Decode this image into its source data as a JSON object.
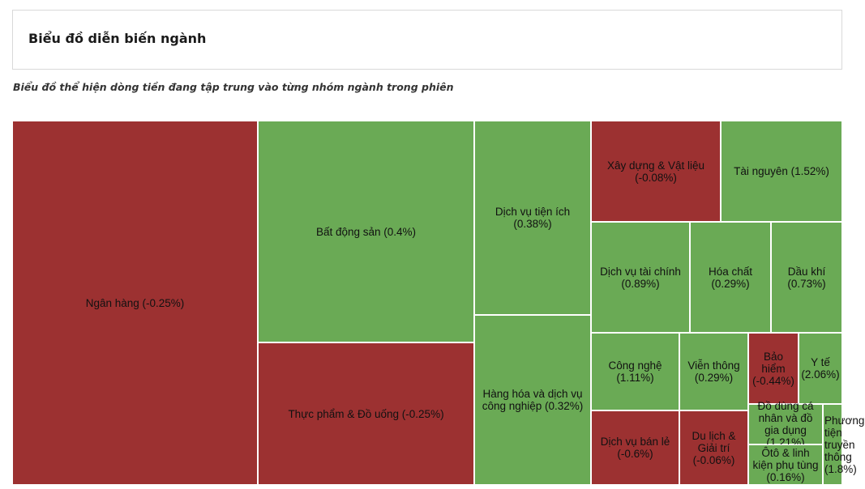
{
  "header": {
    "title": "Biểu đồ diễn biến ngành"
  },
  "subtitle": "Biểu đồ thể hiện dòng tiền đang tập trung vào từng nhóm ngành trong phiên",
  "colors": {
    "up": "#6aaa55",
    "down": "#9c3131"
  },
  "chart_data": {
    "type": "treemap",
    "title": "Biểu đồ diễn biến ngành",
    "subtitle": "Biểu đồ thể hiện dòng tiền đang tập trung vào từng nhóm ngành trong phiên",
    "items": [
      {
        "name": "Ngân hàng",
        "change": -0.25,
        "label": "Ngân hàng (-0.25%)"
      },
      {
        "name": "Bất động sản",
        "change": 0.4,
        "label": "Bất động sản (0.4%)"
      },
      {
        "name": "Thực phẩm & Đồ uống",
        "change": -0.25,
        "label": "Thực phẩm & Đồ uống (-0.25%)"
      },
      {
        "name": "Dịch vụ tiện ích",
        "change": 0.38,
        "label": "Dịch vụ tiện ích (0.38%)"
      },
      {
        "name": "Hàng hóa và dịch vụ công nghiệp",
        "change": 0.32,
        "label": "Hàng hóa và dịch vụ công nghiệp (0.32%)"
      },
      {
        "name": "Xây dựng & Vật liệu",
        "change": -0.08,
        "label": "Xây dựng & Vật liệu (-0.08%)"
      },
      {
        "name": "Tài nguyên",
        "change": 1.52,
        "label": "Tài nguyên (1.52%)"
      },
      {
        "name": "Dịch vụ tài chính",
        "change": 0.89,
        "label": "Dịch vụ tài chính (0.89%)"
      },
      {
        "name": "Hóa chất",
        "change": 0.29,
        "label": "Hóa chất (0.29%)"
      },
      {
        "name": "Dầu khí",
        "change": 0.73,
        "label": "Dầu khí (0.73%)"
      },
      {
        "name": "Công nghệ",
        "change": 1.11,
        "label": "Công nghệ (1.11%)"
      },
      {
        "name": "Viễn thông",
        "change": 0.29,
        "label": "Viễn thông (0.29%)"
      },
      {
        "name": "Bảo hiểm",
        "change": -0.44,
        "label": "Bảo hiểm (-0.44%)"
      },
      {
        "name": "Y tế",
        "change": 2.06,
        "label": "Y tế (2.06%)"
      },
      {
        "name": "Dịch vụ bán lẻ",
        "change": -0.6,
        "label": "Dịch vụ bán lẻ (-0.6%)"
      },
      {
        "name": "Du lịch & Giải trí",
        "change": -0.06,
        "label": "Du lịch & Giải trí (-0.06%)"
      },
      {
        "name": "Đồ dùng cá nhân và đồ gia dụng",
        "change": 1.21,
        "label": "Đồ dùng cá nhân và đồ gia dụng (1.21%)"
      },
      {
        "name": "Ôtô & linh kiện phụ tùng",
        "change": 0.16,
        "label": "Ôtô & linh kiện phụ tùng (0.16%)"
      },
      {
        "name": "Phương tiện truyền thông",
        "change": 1.8,
        "label": "Phương tiện truyền thông (1.8%)"
      }
    ]
  }
}
